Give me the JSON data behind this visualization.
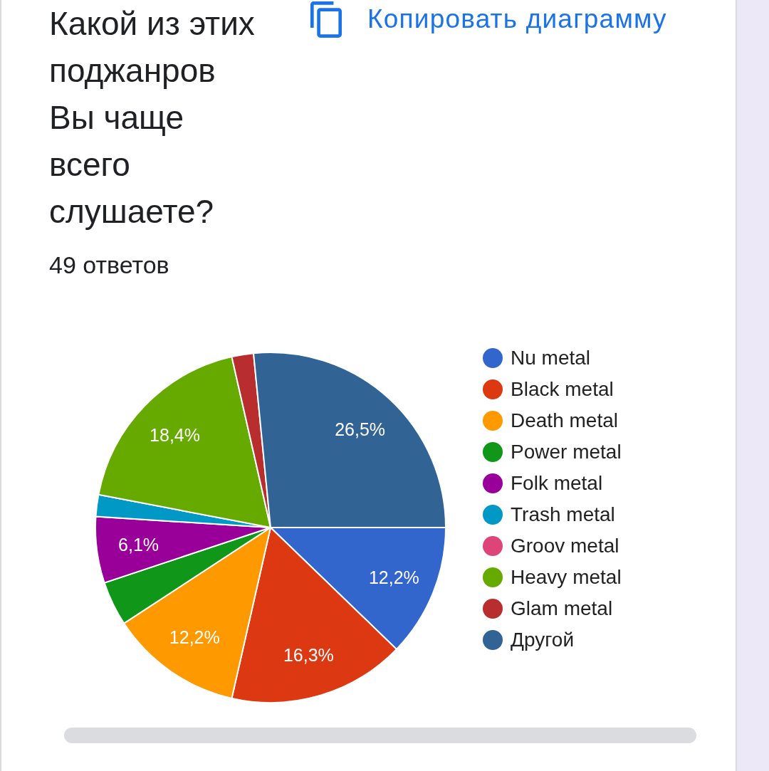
{
  "chart_data": {
    "type": "pie",
    "title": "Какой из этих поджанров Вы чаще всего слушаете?",
    "subtitle": "49 ответов",
    "annotations": [
      "Копировать диаграмму"
    ],
    "categories": [
      "Nu metal",
      "Black metal",
      "Death metal",
      "Power metal",
      "Folk metal",
      "Trash metal",
      "Groov metal",
      "Heavy metal",
      "Glam metal",
      "Другой"
    ],
    "values": [
      12.2,
      16.3,
      12.2,
      4.1,
      6.1,
      2.0,
      0,
      18.4,
      2.0,
      26.5
    ],
    "colors": [
      "#3366cc",
      "#dc3912",
      "#ff9900",
      "#109618",
      "#990099",
      "#0099c6",
      "#dd4477",
      "#66aa00",
      "#b82e2e",
      "#316395"
    ],
    "value_labels": [
      "12,2%",
      "16,3%",
      "12,2%",
      null,
      "6,1%",
      null,
      null,
      "18,4%",
      null,
      "26,5%"
    ],
    "legend": "right"
  }
}
